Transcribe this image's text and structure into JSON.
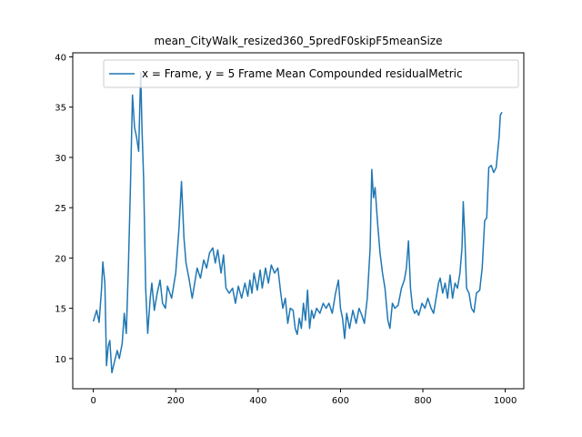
{
  "chart_data": {
    "type": "line",
    "title": "mean_CityWalk_resized360_5predF0skipF5meanSize",
    "xlim": [
      -50,
      1045
    ],
    "ylim": [
      7.0,
      40.4
    ],
    "xticks": [
      0,
      200,
      400,
      600,
      800,
      1000
    ],
    "yticks": [
      10,
      15,
      20,
      25,
      30,
      35,
      40
    ],
    "legend": "upper right",
    "series": [
      {
        "name": "x = Frame, y = 5 Frame Mean Compounded residualMetric",
        "color": "#1f77b4",
        "x": [
          0,
          8,
          14,
          20,
          23,
          28,
          32,
          36,
          40,
          45,
          52,
          58,
          63,
          70,
          75,
          80,
          85,
          90,
          95,
          100,
          105,
          110,
          115,
          118,
          122,
          127,
          132,
          138,
          142,
          148,
          155,
          162,
          168,
          175,
          180,
          190,
          200,
          208,
          214,
          220,
          225,
          232,
          240,
          246,
          252,
          260,
          268,
          275,
          282,
          290,
          296,
          302,
          310,
          316,
          322,
          330,
          338,
          345,
          352,
          360,
          368,
          375,
          380,
          385,
          390,
          398,
          405,
          410,
          418,
          425,
          432,
          440,
          448,
          455,
          460,
          466,
          472,
          478,
          485,
          490,
          495,
          500,
          505,
          510,
          515,
          520,
          525,
          530,
          535,
          542,
          550,
          558,
          565,
          572,
          580,
          588,
          595,
          600,
          605,
          610,
          615,
          622,
          630,
          638,
          645,
          652,
          658,
          665,
          672,
          676,
          680,
          684,
          690,
          696,
          702,
          708,
          715,
          720,
          726,
          732,
          740,
          748,
          755,
          760,
          765,
          770,
          775,
          780,
          785,
          790,
          798,
          805,
          812,
          820,
          826,
          832,
          838,
          842,
          848,
          854,
          860,
          866,
          872,
          878,
          884,
          890,
          895,
          898,
          902,
          906,
          912,
          918,
          924,
          930,
          938,
          944,
          950,
          955,
          960,
          966,
          972,
          978,
          985,
          988,
          992
        ],
        "values": [
          13.7,
          14.8,
          13.6,
          17.0,
          19.6,
          17.5,
          9.3,
          11.2,
          11.8,
          8.6,
          9.8,
          10.8,
          10.0,
          11.5,
          14.5,
          12.5,
          19.0,
          27.0,
          36.2,
          33.0,
          32.0,
          30.6,
          38.5,
          33.0,
          28.0,
          17.0,
          12.5,
          16.0,
          17.5,
          14.8,
          16.5,
          17.8,
          15.5,
          15.0,
          17.2,
          16.0,
          18.5,
          23.0,
          27.6,
          22.0,
          19.5,
          18.0,
          16.0,
          17.5,
          19.0,
          18.0,
          19.8,
          19.0,
          20.5,
          21.0,
          19.5,
          20.8,
          18.5,
          20.3,
          17.0,
          16.5,
          17.0,
          15.5,
          17.2,
          16.0,
          17.5,
          16.2,
          17.8,
          16.5,
          18.5,
          16.8,
          18.8,
          17.0,
          19.0,
          17.5,
          19.3,
          18.5,
          19.0,
          16.5,
          15.0,
          16.0,
          13.5,
          15.0,
          14.8,
          13.0,
          12.4,
          14.0,
          13.0,
          15.5,
          13.8,
          16.8,
          13.0,
          14.8,
          14.0,
          15.0,
          14.5,
          15.5,
          15.0,
          15.5,
          14.5,
          16.5,
          17.8,
          15.0,
          14.0,
          12.0,
          14.5,
          13.0,
          14.8,
          13.5,
          15.0,
          14.3,
          13.5,
          16.0,
          21.0,
          28.8,
          26.0,
          27.0,
          23.5,
          20.5,
          18.5,
          17.0,
          13.8,
          13.0,
          15.5,
          15.0,
          15.3,
          17.0,
          17.8,
          19.0,
          21.7,
          17.0,
          15.0,
          14.5,
          14.8,
          14.3,
          15.5,
          15.0,
          16.0,
          15.0,
          14.5,
          16.0,
          17.5,
          18.0,
          16.5,
          17.5,
          16.0,
          18.3,
          16.0,
          17.5,
          17.0,
          18.5,
          21.0,
          25.6,
          22.0,
          17.0,
          16.5,
          15.0,
          14.6,
          16.5,
          16.8,
          19.0,
          23.7,
          24.0,
          29.0,
          29.2,
          28.5,
          29.0,
          32.0,
          34.2,
          34.5
        ]
      }
    ]
  }
}
